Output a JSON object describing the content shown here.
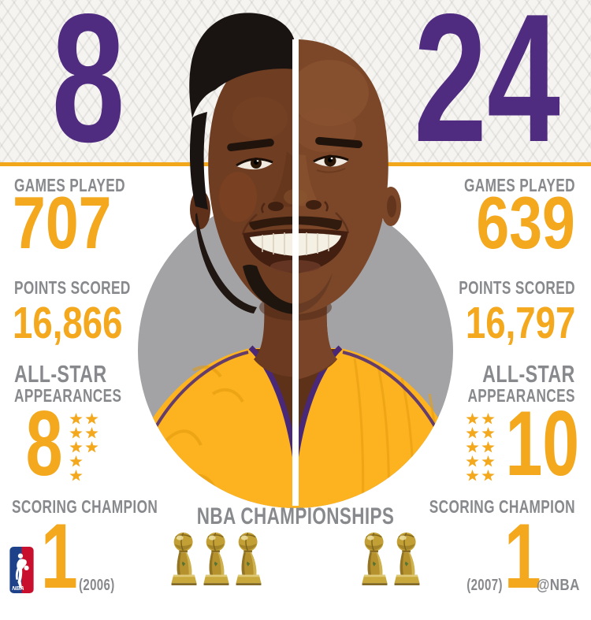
{
  "banner": {
    "left_number": "8",
    "right_number": "24"
  },
  "left": {
    "games_label": "GAMES PLAYED",
    "games_value": "707",
    "points_label": "POINTS SCORED",
    "points_value": "16,866",
    "allstar_line1": "ALL-STAR",
    "allstar_line2": "APPEARANCES",
    "allstar_value": "8",
    "allstar_star_columns": [
      5,
      3
    ],
    "scoring_label": "SCORING CHAMPION",
    "scoring_value": "1",
    "scoring_year": "(2006)",
    "championships": 3
  },
  "right": {
    "games_label": "GAMES PLAYED",
    "games_value": "639",
    "points_label": "POINTS SCORED",
    "points_value": "16,797",
    "allstar_line1": "ALL-STAR",
    "allstar_line2": "APPEARANCES",
    "allstar_value": "10",
    "allstar_star_columns": [
      5,
      5
    ],
    "scoring_label": "SCORING CHAMPION",
    "scoring_value": "1",
    "scoring_year": "(2007)",
    "championships": 2
  },
  "center": {
    "championships_label": "NBA CHAMPIONSHIPS"
  },
  "logo": {
    "nba_text": "NBA"
  },
  "credit": "@NBA",
  "colors": {
    "purple": "#502C80",
    "gold": "#F3A81D",
    "gray_text": "#87898C",
    "circle_gray": "#A3A3A5",
    "jersey_gold": "#FCB31F",
    "nba_blue": "#1D428A",
    "nba_red": "#C8102E"
  },
  "chart_data": {
    "type": "table",
    "title": "Kobe Bryant jersey #8 vs jersey #24 career comparison",
    "categories": [
      "Games Played",
      "Points Scored",
      "All-Star Appearances",
      "Scoring Champion",
      "NBA Championships"
    ],
    "series": [
      {
        "name": "8",
        "values": [
          707,
          16866,
          8,
          1,
          3
        ],
        "scoring_champion_year": "(2006)"
      },
      {
        "name": "24",
        "values": [
          639,
          16797,
          10,
          1,
          2
        ],
        "scoring_champion_year": "(2007)"
      }
    ],
    "legend_position": "none",
    "grid": false
  }
}
